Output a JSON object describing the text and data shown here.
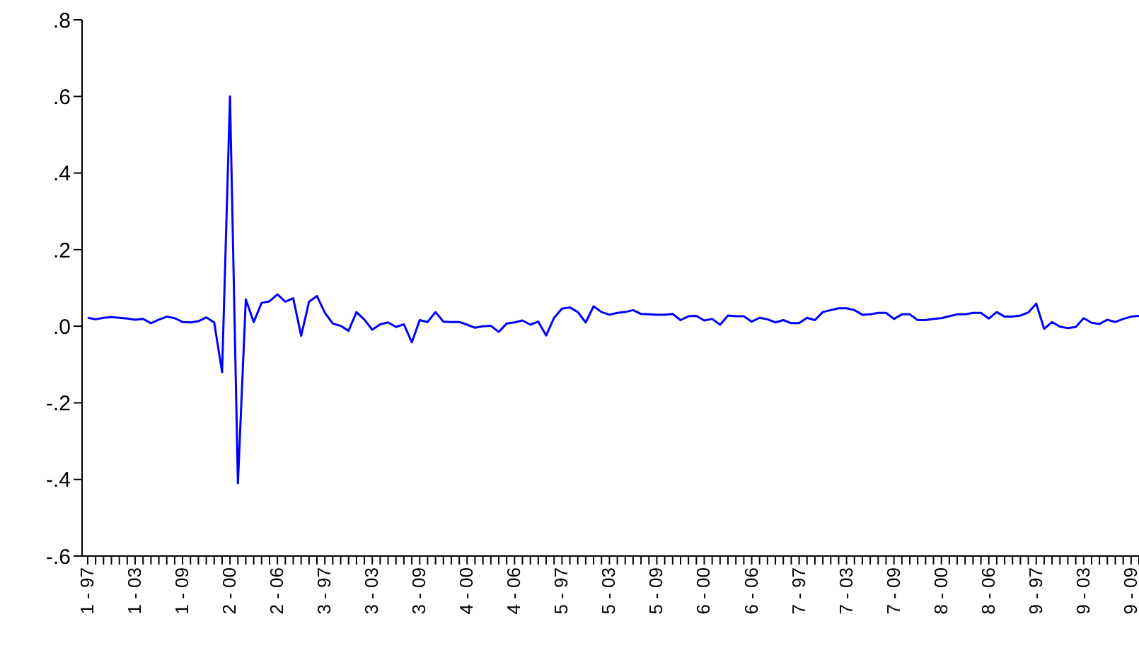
{
  "chart_data": {
    "type": "line",
    "categories": [
      "1 - 97",
      null,
      null,
      null,
      null,
      null,
      "1 - 03",
      null,
      null,
      null,
      null,
      null,
      "1 - 09",
      null,
      null,
      null,
      null,
      null,
      "2 - 00",
      null,
      null,
      null,
      null,
      null,
      "2 - 06",
      null,
      null,
      null,
      null,
      null,
      "3 - 97",
      null,
      null,
      null,
      null,
      null,
      "3 - 03",
      null,
      null,
      null,
      null,
      null,
      "3 - 09",
      null,
      null,
      null,
      null,
      null,
      "4 - 00",
      null,
      null,
      null,
      null,
      null,
      "4 - 06",
      null,
      null,
      null,
      null,
      null,
      "5 - 97",
      null,
      null,
      null,
      null,
      null,
      "5 - 03",
      null,
      null,
      null,
      null,
      null,
      "5 - 09",
      null,
      null,
      null,
      null,
      null,
      "6 - 00",
      null,
      null,
      null,
      null,
      null,
      "6 - 06",
      null,
      null,
      null,
      null,
      null,
      "7 - 97",
      null,
      null,
      null,
      null,
      null,
      "7 - 03",
      null,
      null,
      null,
      null,
      null,
      "7 - 09",
      null,
      null,
      null,
      null,
      null,
      "8 - 00",
      null,
      null,
      null,
      null,
      null,
      "8 - 06",
      null,
      null,
      null,
      null,
      null,
      "9 - 97",
      null,
      null,
      null,
      null,
      null,
      "9 - 03",
      null,
      null,
      null,
      null,
      null,
      "9 - 09",
      null
    ],
    "series": [
      {
        "color": "#0000ff",
        "values": [
          0.022,
          0.018,
          0.022,
          0.024,
          0.022,
          0.02,
          0.017,
          0.019,
          0.008,
          0.017,
          0.025,
          0.021,
          0.011,
          0.01,
          0.013,
          0.023,
          0.01,
          -0.12,
          0.6,
          -0.41,
          0.07,
          0.011,
          0.061,
          0.065,
          0.083,
          0.064,
          0.073,
          -0.025,
          0.064,
          0.079,
          0.035,
          0.007,
          0.001,
          -0.012,
          0.037,
          0.017,
          -0.009,
          0.005,
          0.01,
          -0.002,
          0.005,
          -0.042,
          0.016,
          0.011,
          0.037,
          0.012,
          0.011,
          0.011,
          0.004,
          -0.004,
          0.0,
          0.001,
          -0.015,
          0.007,
          0.01,
          0.015,
          0.004,
          0.012,
          -0.024,
          0.022,
          0.046,
          0.049,
          0.037,
          0.01,
          0.052,
          0.037,
          0.03,
          0.035,
          0.037,
          0.042,
          0.032,
          0.031,
          0.03,
          0.03,
          0.032,
          0.016,
          0.026,
          0.027,
          0.015,
          0.019,
          0.004,
          0.028,
          0.026,
          0.026,
          0.012,
          0.022,
          0.018,
          0.01,
          0.016,
          0.008,
          0.008,
          0.022,
          0.016,
          0.037,
          0.042,
          0.047,
          0.047,
          0.042,
          0.03,
          0.031,
          0.035,
          0.035,
          0.019,
          0.031,
          0.031,
          0.016,
          0.016,
          0.019,
          0.021,
          0.026,
          0.031,
          0.031,
          0.035,
          0.035,
          0.02,
          0.037,
          0.025,
          0.025,
          0.028,
          0.036,
          0.059,
          -0.007,
          0.011,
          -0.001,
          -0.005,
          -0.002,
          0.021,
          0.009,
          0.006,
          0.017,
          0.011,
          0.019,
          0.025,
          0.027
        ]
      }
    ],
    "ylim": [
      -0.6,
      0.8
    ],
    "yticks": [
      {
        "value": -0.6,
        "label": "-.6"
      },
      {
        "value": -0.4,
        "label": "-.4"
      },
      {
        "value": -0.2,
        "label": "-.2"
      },
      {
        "value": 0,
        "label": ".0"
      },
      {
        "value": 0.2,
        "label": ".2"
      },
      {
        "value": 0.4,
        "label": ".4"
      },
      {
        "value": 0.6,
        "label": ".6"
      },
      {
        "value": 0.8,
        "label": ".8"
      }
    ],
    "grid": false,
    "legend": false,
    "marker": "none",
    "line_style": "solid"
  }
}
